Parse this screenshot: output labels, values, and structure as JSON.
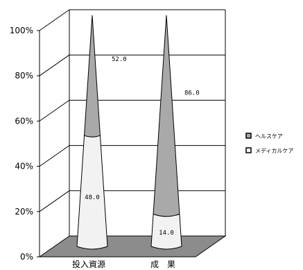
{
  "chart_data": {
    "type": "bar",
    "stacked": true,
    "percent": true,
    "three_d": true,
    "bar_shape": "cone",
    "categories": [
      "投入資源",
      "成　果"
    ],
    "series": [
      {
        "name": "メディカルケア",
        "values": [
          48.0,
          14.0
        ],
        "color": "#f2f2f2"
      },
      {
        "name": "ヘルスケア",
        "values": [
          52.0,
          86.0
        ],
        "color": "#a9a9a9"
      }
    ],
    "data_labels": [
      {
        "series": 1,
        "category": 0,
        "text": "52.0"
      },
      {
        "series": 0,
        "category": 0,
        "text": "48.0"
      },
      {
        "series": 1,
        "category": 1,
        "text": "86.0"
      },
      {
        "series": 0,
        "category": 1,
        "text": "14.0"
      }
    ],
    "y_ticks": [
      "0%",
      "20%",
      "40%",
      "60%",
      "80%",
      "100%"
    ],
    "ylim": [
      0,
      100
    ],
    "grid": true,
    "legend_position": "right",
    "colors": {
      "floor": "#8c8c8c",
      "grid": "#000000",
      "wall": "#ffffff"
    }
  }
}
